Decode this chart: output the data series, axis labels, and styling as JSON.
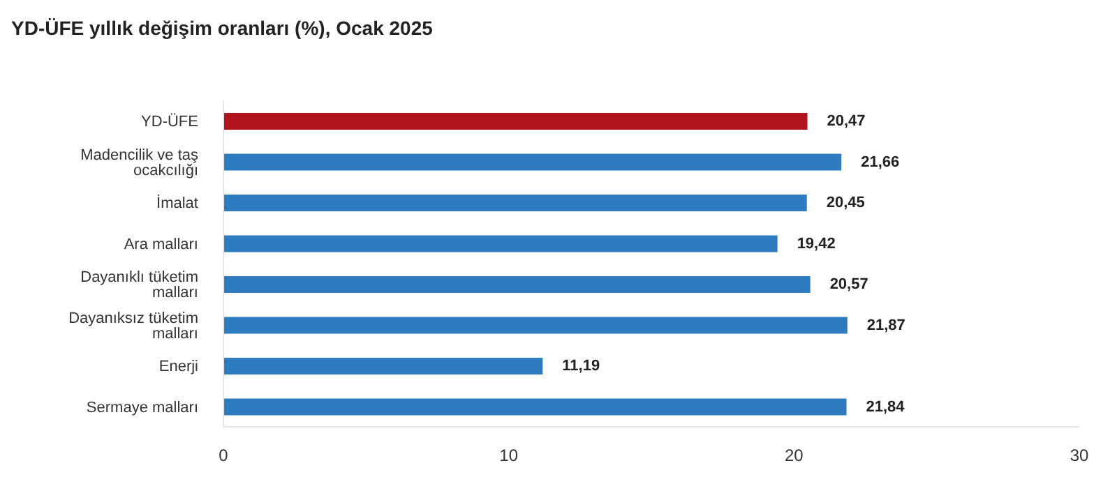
{
  "chart_data": {
    "type": "bar",
    "orientation": "horizontal",
    "title": "YD-ÜFE yıllık değişim oranları (%), Ocak 2025",
    "categories": [
      "YD-ÜFE",
      "Madencilik ve taş ocakcılığı",
      "İmalat",
      "Ara malları",
      "Dayanıklı tüketim malları",
      "Dayanıksız tüketim malları",
      "Enerji",
      "Sermaye malları"
    ],
    "values": [
      20.47,
      21.66,
      20.45,
      19.42,
      20.57,
      21.87,
      11.19,
      21.84
    ],
    "colors": [
      "#b0151f",
      "#2e7bbf",
      "#2e7bbf",
      "#2e7bbf",
      "#2e7bbf",
      "#2e7bbf",
      "#2e7bbf",
      "#2e7bbf"
    ],
    "value_labels": [
      "20,47",
      "21,66",
      "20,45",
      "19,42",
      "20,57",
      "21,87",
      "11,19",
      "21,84"
    ],
    "xlim": [
      0,
      30
    ],
    "xticks": [
      0,
      10,
      20,
      30
    ],
    "grid": false,
    "legend": false
  }
}
